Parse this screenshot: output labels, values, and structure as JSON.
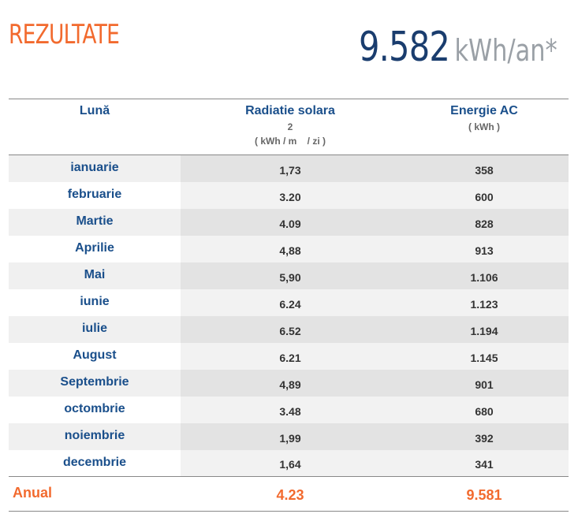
{
  "header": {
    "title": "REZULTATE",
    "total_value": "9.582",
    "total_unit": "kWh/an",
    "total_mark": "*"
  },
  "table": {
    "columns": {
      "month": "Lună",
      "radiation": "Radiatie solara",
      "radiation_sup": "2",
      "radiation_unit": "( kWh / m    / zi )",
      "energy": "Energie AC",
      "energy_unit": "( kWh )"
    },
    "rows": [
      {
        "month": "ianuarie",
        "radiation": "1,73",
        "energy": "358"
      },
      {
        "month": "februarie",
        "radiation": "3.20",
        "energy": "600"
      },
      {
        "month": "Martie",
        "radiation": "4.09",
        "energy": "828"
      },
      {
        "month": "Aprilie",
        "radiation": "4,88",
        "energy": "913"
      },
      {
        "month": "Mai",
        "radiation": "5,90",
        "energy": "1.106"
      },
      {
        "month": "iunie",
        "radiation": "6.24",
        "energy": "1.123"
      },
      {
        "month": "iulie",
        "radiation": "6.52",
        "energy": "1.194"
      },
      {
        "month": "August",
        "radiation": "6.21",
        "energy": "1.145"
      },
      {
        "month": "Septembrie",
        "radiation": "4,89",
        "energy": "901"
      },
      {
        "month": "octombrie",
        "radiation": "3.48",
        "energy": "680"
      },
      {
        "month": "noiembrie",
        "radiation": "1,99",
        "energy": "392"
      },
      {
        "month": "decembrie",
        "radiation": "1,64",
        "energy": "341"
      }
    ],
    "footer": {
      "label": "Anual",
      "radiation": "4.23",
      "energy": "9.581"
    }
  },
  "colors": {
    "accent": "#f26a2e",
    "heading": "#1a4f8b",
    "total": "#1a3d6e"
  }
}
